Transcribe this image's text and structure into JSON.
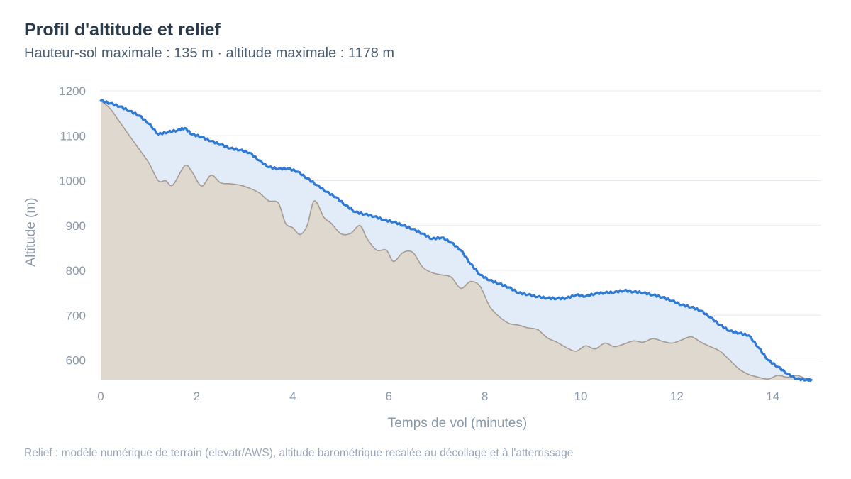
{
  "chart_data": {
    "type": "area",
    "title": "Profil d'altitude et relief",
    "subtitle": "Hauteur-sol maximale : 135 m · altitude maximale : 1178 m",
    "caption": "Relief : modèle numérique de terrain (elevatr/AWS), altitude barométrique recalée au décollage et à l'atterrissage",
    "xlabel": "Temps de vol (minutes)",
    "ylabel": "Altitude (m)",
    "xlim": [
      0,
      15
    ],
    "ylim": [
      555,
      1200
    ],
    "xticks": [
      0,
      2,
      4,
      6,
      8,
      10,
      12,
      14
    ],
    "yticks": [
      600,
      700,
      800,
      900,
      1000,
      1100,
      1200
    ],
    "grid": "horizontal",
    "colors": {
      "flight": "#2f7ad6",
      "flight_fill": "#e1ecf8",
      "terrain_fill": "#dfd8ce",
      "terrain_line": "#a59b92",
      "grid": "#e6e9ee"
    },
    "series": [
      {
        "key": "flight",
        "x": [
          0,
          0.2,
          0.4,
          0.6,
          0.8,
          1.0,
          1.2,
          1.4,
          1.6,
          1.75,
          1.9,
          2.1,
          2.3,
          2.5,
          2.7,
          2.9,
          3.1,
          3.3,
          3.5,
          3.7,
          3.9,
          4.1,
          4.3,
          4.5,
          4.7,
          4.9,
          5.1,
          5.3,
          5.5,
          5.7,
          5.9,
          6.1,
          6.3,
          6.5,
          6.7,
          6.9,
          7.1,
          7.3,
          7.5,
          7.7,
          7.9,
          8.1,
          8.3,
          8.5,
          8.7,
          8.9,
          9.1,
          9.3,
          9.5,
          9.7,
          9.9,
          10.1,
          10.3,
          10.5,
          10.7,
          10.9,
          11.1,
          11.3,
          11.5,
          11.7,
          11.9,
          12.1,
          12.3,
          12.5,
          12.7,
          12.9,
          13.1,
          13.3,
          13.5,
          13.7,
          13.9,
          14.1,
          14.3,
          14.5,
          14.7,
          14.8
        ],
        "y": [
          1178,
          1172,
          1165,
          1155,
          1145,
          1127,
          1103,
          1108,
          1112,
          1117,
          1103,
          1097,
          1088,
          1080,
          1072,
          1068,
          1062,
          1045,
          1030,
          1026,
          1027,
          1020,
          1005,
          990,
          975,
          963,
          945,
          930,
          925,
          920,
          912,
          908,
          900,
          892,
          882,
          870,
          873,
          862,
          845,
          815,
          790,
          778,
          770,
          762,
          750,
          746,
          741,
          738,
          737,
          738,
          745,
          742,
          748,
          750,
          751,
          755,
          752,
          750,
          745,
          740,
          732,
          723,
          718,
          710,
          695,
          678,
          665,
          660,
          655,
          628,
          600,
          585,
          570,
          558,
          556,
          556
        ]
      },
      {
        "key": "terrain",
        "x": [
          0,
          0.2,
          0.4,
          0.6,
          0.8,
          1.0,
          1.2,
          1.35,
          1.5,
          1.75,
          1.9,
          2.1,
          2.3,
          2.5,
          2.7,
          2.9,
          3.1,
          3.3,
          3.5,
          3.7,
          3.85,
          4.0,
          4.15,
          4.3,
          4.45,
          4.65,
          4.8,
          5.0,
          5.2,
          5.4,
          5.55,
          5.75,
          5.95,
          6.1,
          6.3,
          6.5,
          6.7,
          6.9,
          7.1,
          7.3,
          7.5,
          7.7,
          7.9,
          8.1,
          8.3,
          8.5,
          8.7,
          8.9,
          9.1,
          9.3,
          9.5,
          9.7,
          9.9,
          10.1,
          10.3,
          10.5,
          10.7,
          10.9,
          11.1,
          11.3,
          11.5,
          11.7,
          11.9,
          12.1,
          12.3,
          12.5,
          12.7,
          12.9,
          13.1,
          13.3,
          13.5,
          13.7,
          13.9,
          14.1,
          14.3,
          14.5,
          14.7,
          14.8
        ],
        "y": [
          1178,
          1160,
          1130,
          1100,
          1070,
          1040,
          1000,
          1000,
          990,
          1033,
          1020,
          988,
          1012,
          995,
          993,
          990,
          983,
          973,
          955,
          950,
          905,
          895,
          880,
          900,
          955,
          918,
          905,
          882,
          882,
          900,
          870,
          845,
          845,
          820,
          840,
          840,
          808,
          795,
          790,
          785,
          760,
          775,
          765,
          720,
          697,
          682,
          678,
          672,
          668,
          650,
          640,
          628,
          620,
          632,
          625,
          638,
          630,
          636,
          643,
          640,
          648,
          642,
          638,
          645,
          652,
          640,
          630,
          620,
          600,
          580,
          568,
          562,
          558,
          566,
          562,
          566,
          558,
          556
        ]
      }
    ]
  }
}
